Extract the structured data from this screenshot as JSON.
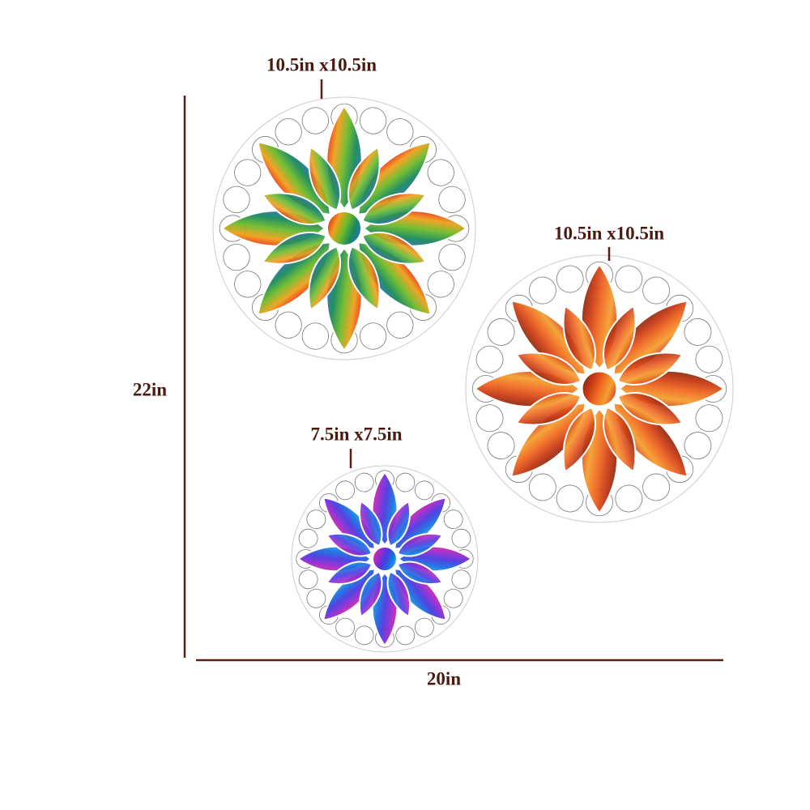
{
  "items": [
    {
      "label": "10.5in x10.5in"
    },
    {
      "label": "10.5in x10.5in"
    },
    {
      "label": "7.5in x7.5in"
    }
  ],
  "dimensions": {
    "height": "22in",
    "width": "20in"
  }
}
